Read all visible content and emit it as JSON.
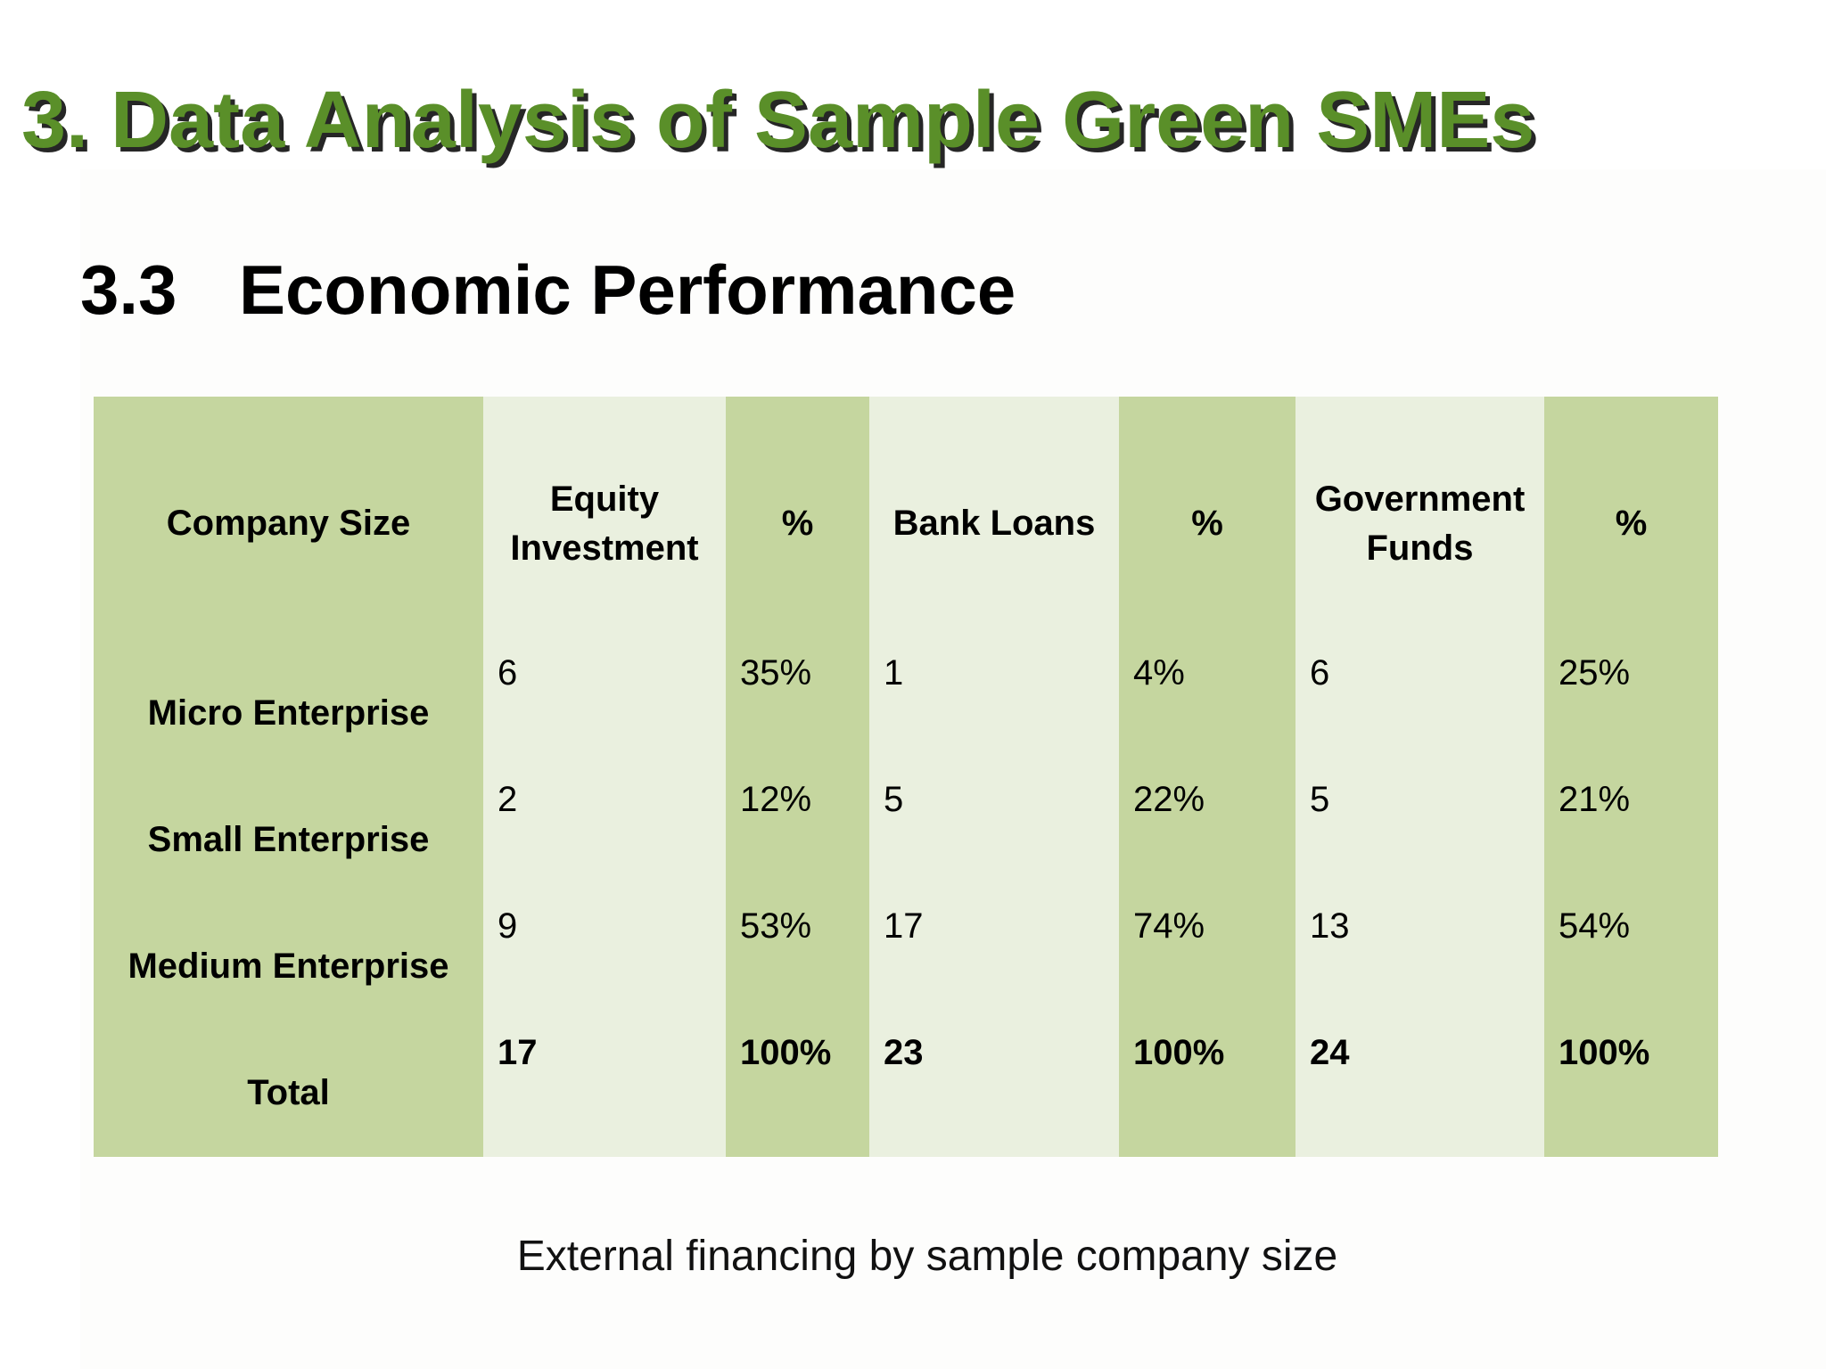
{
  "title": "3. Data Analysis of Sample Green SMEs",
  "section": {
    "number": "3.3",
    "name": "Economic Performance"
  },
  "colors": {
    "title_green": "#5a8f29",
    "column_dark": "#c5d69f",
    "column_light": "#eaf0df"
  },
  "table": {
    "headers": [
      "Company Size",
      "Equity Investment",
      "%",
      "Bank Loans",
      "%",
      "Government Funds",
      "%"
    ],
    "rows": [
      {
        "size": "Micro Enterprise",
        "cells": [
          "6",
          "35%",
          "1",
          "4%",
          "6",
          "25%"
        ]
      },
      {
        "size": "Small Enterprise",
        "cells": [
          "2",
          "12%",
          "5",
          "22%",
          "5",
          "21%"
        ]
      },
      {
        "size": "Medium Enterprise",
        "cells": [
          "9",
          "53%",
          "17",
          "74%",
          "13",
          "54%"
        ]
      },
      {
        "size": "Total",
        "cells": [
          "17",
          "100%",
          "23",
          "100%",
          "24",
          "100%"
        ]
      }
    ]
  },
  "caption": "External financing by sample company size"
}
